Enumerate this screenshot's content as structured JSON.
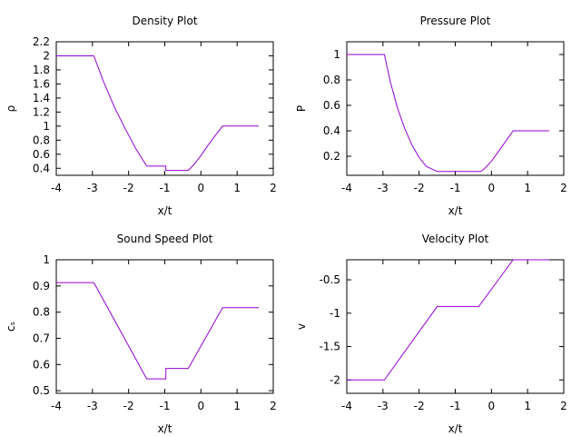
{
  "chart_data": [
    {
      "type": "line",
      "title": "Density Plot",
      "xlabel": "x/t",
      "ylabel": "ρ",
      "xlim": [
        -4,
        2
      ],
      "ylim": [
        0.3,
        2.2
      ],
      "xticks": [
        -4,
        -3,
        -2,
        -1,
        0,
        1,
        2
      ],
      "yticks": [
        0.4,
        0.6,
        0.8,
        1,
        1.2,
        1.4,
        1.6,
        1.8,
        2,
        2.2
      ],
      "grid": false,
      "series": [
        {
          "color": "#9400d3",
          "x": [
            -4.0,
            -2.96,
            -2.7,
            -2.4,
            -2.1,
            -1.8,
            -1.5,
            -1.5,
            -0.97,
            -0.97,
            -0.35,
            -0.2,
            0.0,
            0.2,
            0.4,
            0.6,
            0.6,
            1.6
          ],
          "y": [
            2.0,
            2.0,
            1.64,
            1.28,
            0.97,
            0.68,
            0.43,
            0.43,
            0.43,
            0.37,
            0.37,
            0.45,
            0.58,
            0.73,
            0.87,
            1.0,
            1.0,
            1.0
          ]
        }
      ]
    },
    {
      "type": "line",
      "title": "Pressure Plot",
      "xlabel": "x/t",
      "ylabel": "P",
      "xlim": [
        -4,
        2
      ],
      "ylim": [
        0.05,
        1.1
      ],
      "xticks": [
        -4,
        -3,
        -2,
        -1,
        0,
        1,
        2
      ],
      "yticks": [
        0.2,
        0.4,
        0.6,
        0.8,
        1
      ],
      "grid": false,
      "series": [
        {
          "color": "#9400d3",
          "x": [
            -4.0,
            -2.96,
            -2.8,
            -2.6,
            -2.4,
            -2.2,
            -2.0,
            -1.8,
            -1.5,
            -1.5,
            -0.3,
            -0.2,
            0.0,
            0.2,
            0.4,
            0.6,
            0.6,
            1.6
          ],
          "y": [
            1.0,
            1.0,
            0.79,
            0.58,
            0.42,
            0.29,
            0.19,
            0.12,
            0.08,
            0.08,
            0.08,
            0.1,
            0.16,
            0.24,
            0.32,
            0.4,
            0.4,
            0.4
          ]
        }
      ]
    },
    {
      "type": "line",
      "title": "Sound Speed Plot",
      "xlabel": "x/t",
      "ylabel": "cₛ",
      "xlim": [
        -4,
        2
      ],
      "ylim": [
        0.49,
        1.0
      ],
      "xticks": [
        -4,
        -3,
        -2,
        -1,
        0,
        1,
        2
      ],
      "yticks": [
        0.5,
        0.6,
        0.7,
        0.8,
        0.9,
        1
      ],
      "grid": false,
      "series": [
        {
          "color": "#9400d3",
          "x": [
            -4.0,
            -2.96,
            -1.5,
            -1.5,
            -0.97,
            -0.97,
            -0.35,
            0.6,
            0.6,
            1.6
          ],
          "y": [
            0.913,
            0.913,
            0.545,
            0.545,
            0.545,
            0.585,
            0.585,
            0.817,
            0.817,
            0.817
          ]
        }
      ]
    },
    {
      "type": "line",
      "title": "Velocity Plot",
      "xlabel": "x/t",
      "ylabel": "v",
      "xlim": [
        -4,
        2
      ],
      "ylim": [
        -2.2,
        -0.2
      ],
      "xticks": [
        -4,
        -3,
        -2,
        -1,
        0,
        1,
        2
      ],
      "yticks": [
        -2,
        -1.5,
        -1,
        -0.5
      ],
      "grid": false,
      "series": [
        {
          "color": "#9400d3",
          "x": [
            -4.0,
            -2.96,
            -1.5,
            -0.35,
            0.6,
            1.6
          ],
          "y": [
            -2.0,
            -2.0,
            -0.9,
            -0.9,
            -0.2,
            -0.2
          ]
        }
      ]
    }
  ]
}
